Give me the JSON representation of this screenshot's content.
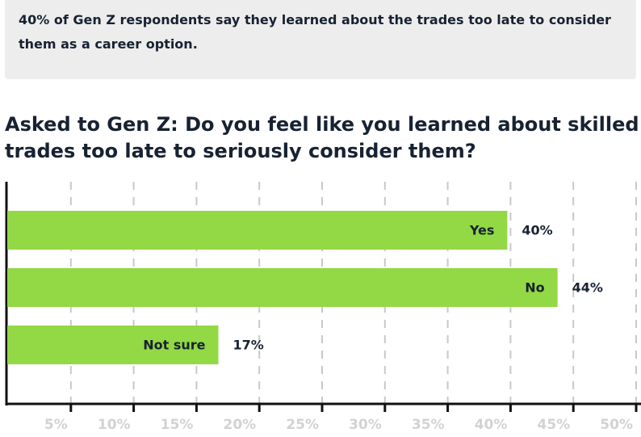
{
  "callout": "40% of Gen Z respondents say they learned about the trades too late to consider them as a career option.",
  "chart_data": {
    "type": "hbar",
    "title": "Asked to Gen Z: Do you feel like you learned about skilled trades too late to seriously consider them?",
    "categories": [
      "Yes",
      "No",
      "Not sure"
    ],
    "values": [
      40,
      44,
      17
    ],
    "value_labels": [
      "40%",
      "44%",
      "17%"
    ],
    "color": "#93d845",
    "xlim": [
      0,
      50
    ],
    "xticks": [
      {
        "value": 5,
        "label": "5%"
      },
      {
        "value": 10,
        "label": "10%"
      },
      {
        "value": 15,
        "label": "15%"
      },
      {
        "value": 20,
        "label": "20%"
      },
      {
        "value": 25,
        "label": "25%"
      },
      {
        "value": 30,
        "label": "30%"
      },
      {
        "value": 35,
        "label": "35%"
      },
      {
        "value": 40,
        "label": "40%"
      },
      {
        "value": 45,
        "label": "45%"
      },
      {
        "value": 50,
        "label": "50%"
      }
    ],
    "grid": true
  }
}
